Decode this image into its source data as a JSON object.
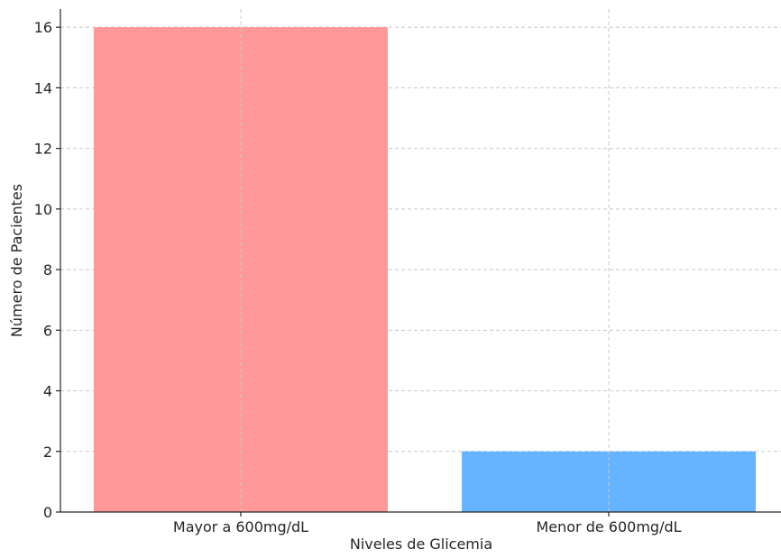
{
  "chart_data": {
    "type": "bar",
    "categories": [
      "Mayor a 600mg/dL",
      "Menor de 600mg/dL"
    ],
    "values": [
      16,
      2
    ],
    "colors": [
      "#ff9999",
      "#66b3ff"
    ],
    "title": "",
    "xlabel": "Niveles de Glicemia",
    "ylabel": "Número de Pacientes",
    "ylim": [
      0,
      16.6
    ],
    "yticks": [
      0,
      2,
      4,
      6,
      8,
      10,
      12,
      14,
      16
    ],
    "grid": true
  }
}
